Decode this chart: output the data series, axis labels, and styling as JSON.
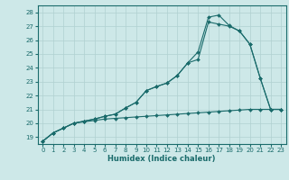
{
  "xlabel": "Humidex (Indice chaleur)",
  "bg_color": "#cde8e8",
  "grid_color": "#b0d0d0",
  "line_color": "#1a6b6b",
  "xlim": [
    -0.5,
    23.5
  ],
  "ylim": [
    18.5,
    28.5
  ],
  "xticks": [
    0,
    1,
    2,
    3,
    4,
    5,
    6,
    7,
    8,
    9,
    10,
    11,
    12,
    13,
    14,
    15,
    16,
    17,
    18,
    19,
    20,
    21,
    22,
    23
  ],
  "yticks": [
    19,
    20,
    21,
    22,
    23,
    24,
    25,
    26,
    27,
    28
  ],
  "line1_x": [
    0,
    1,
    2,
    3,
    4,
    5,
    6,
    7,
    8,
    9,
    10,
    11,
    12,
    13,
    14,
    15,
    16,
    17,
    18,
    19,
    20,
    21,
    22,
    23
  ],
  "line1_y": [
    18.7,
    19.3,
    19.65,
    20.0,
    20.1,
    20.2,
    20.3,
    20.35,
    20.4,
    20.45,
    20.5,
    20.55,
    20.6,
    20.65,
    20.7,
    20.75,
    20.8,
    20.85,
    20.9,
    20.95,
    21.0,
    21.0,
    21.0,
    21.0
  ],
  "line2_x": [
    0,
    1,
    2,
    3,
    4,
    5,
    6,
    7,
    8,
    9,
    10,
    11,
    12,
    13,
    14,
    15,
    16,
    17,
    18,
    19,
    20,
    21,
    22,
    23
  ],
  "line2_y": [
    18.7,
    19.3,
    19.65,
    20.0,
    20.15,
    20.3,
    20.5,
    20.65,
    21.1,
    21.5,
    22.35,
    22.65,
    22.9,
    23.45,
    24.35,
    24.6,
    27.3,
    27.15,
    27.0,
    26.65,
    25.7,
    23.25,
    21.0,
    21.0
  ],
  "line3_x": [
    0,
    1,
    2,
    3,
    4,
    5,
    6,
    7,
    8,
    9,
    10,
    11,
    12,
    13,
    14,
    15,
    16,
    17,
    18,
    19,
    20,
    21,
    22,
    23
  ],
  "line3_y": [
    18.7,
    19.3,
    19.65,
    20.0,
    20.15,
    20.3,
    20.5,
    20.65,
    21.1,
    21.5,
    22.35,
    22.65,
    22.9,
    23.45,
    24.35,
    25.15,
    27.65,
    27.8,
    27.05,
    26.65,
    25.7,
    23.25,
    21.0,
    21.0
  ]
}
